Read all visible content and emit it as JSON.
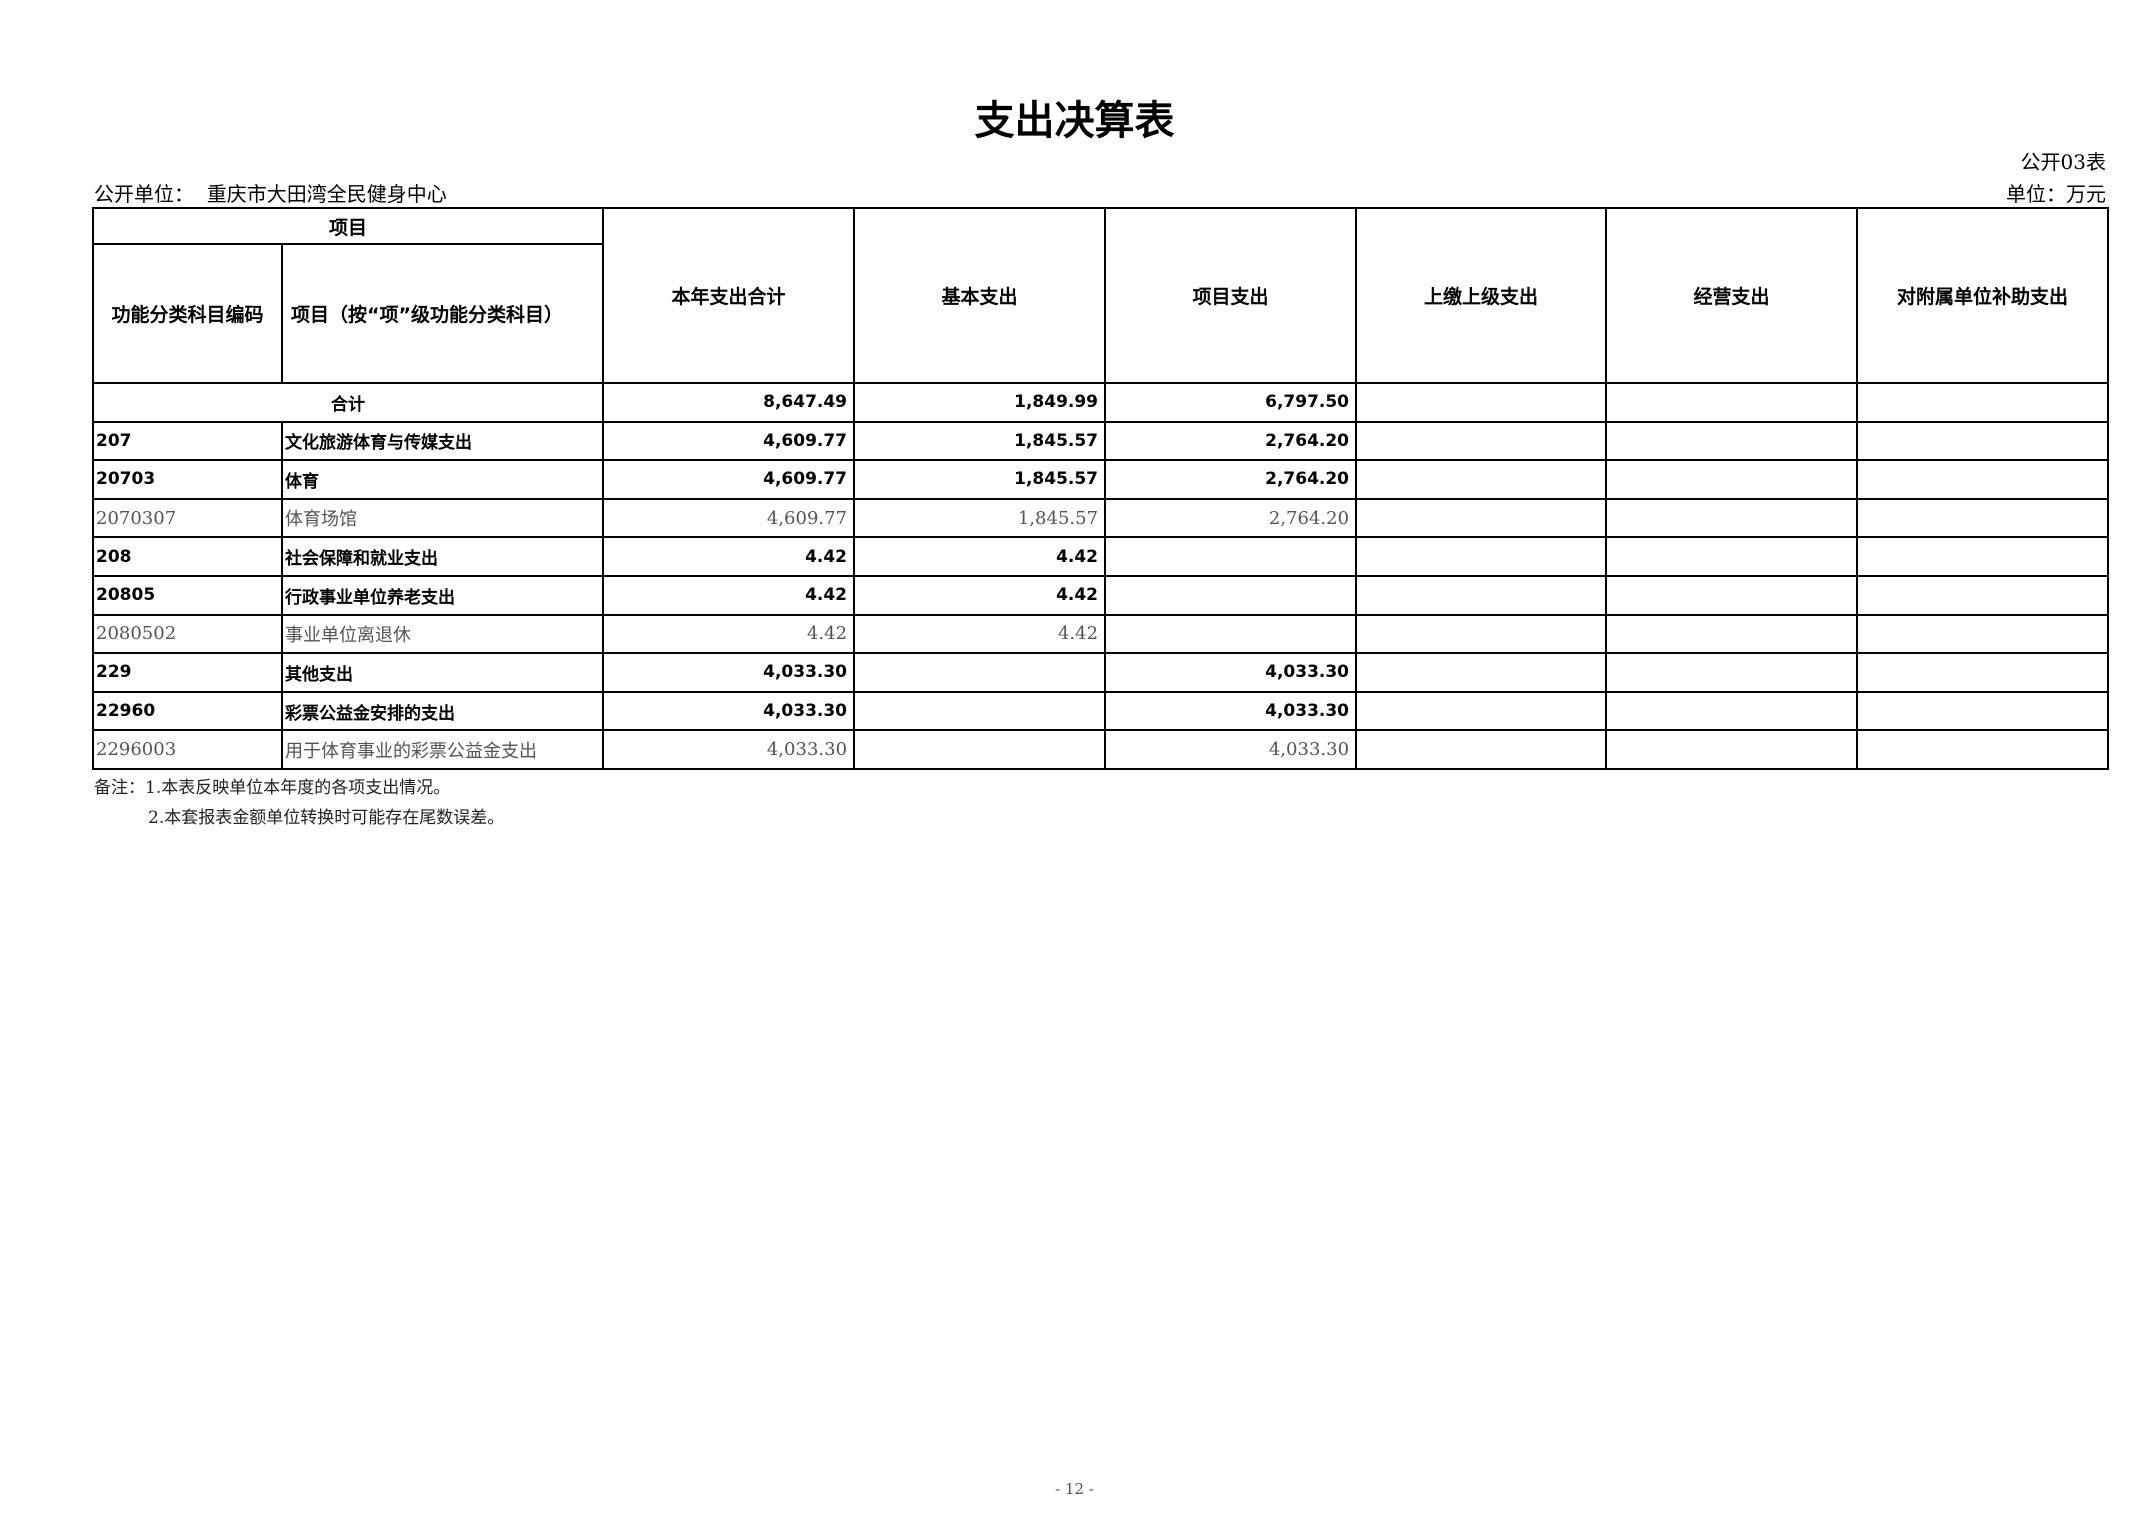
{
  "title": "支出决算表",
  "form_no": "公开03表",
  "unit_label": "公开单位：",
  "unit_name": "重庆市大田湾全民健身中心",
  "currency_unit": "单位：万元",
  "header": {
    "item_group": "项目",
    "code": "功能分类科目编码",
    "name": "项目（按“项”级功能分类科目）",
    "cols": [
      "本年支出合计",
      "基本支出",
      "项目支出",
      "上缴上级支出",
      "经营支出",
      "对附属单位补助支出"
    ]
  },
  "total_row": {
    "label": "合计",
    "values": [
      "8,647.49",
      "1,849.99",
      "6,797.50",
      "",
      "",
      ""
    ]
  },
  "rows": [
    {
      "code": "207",
      "name": "文化旅游体育与传媒支出",
      "level": "bold",
      "values": [
        "4,609.77",
        "1,845.57",
        "2,764.20",
        "",
        "",
        ""
      ]
    },
    {
      "code": "20703",
      "name": "体育",
      "level": "bold",
      "values": [
        "4,609.77",
        "1,845.57",
        "2,764.20",
        "",
        "",
        ""
      ]
    },
    {
      "code": "2070307",
      "name": "体育场馆",
      "level": "light",
      "values": [
        "4,609.77",
        "1,845.57",
        "2,764.20",
        "",
        "",
        ""
      ]
    },
    {
      "code": "208",
      "name": "社会保障和就业支出",
      "level": "bold",
      "values": [
        "4.42",
        "4.42",
        "",
        "",
        "",
        ""
      ]
    },
    {
      "code": "20805",
      "name": "行政事业单位养老支出",
      "level": "bold",
      "values": [
        "4.42",
        "4.42",
        "",
        "",
        "",
        ""
      ]
    },
    {
      "code": "2080502",
      "name": "事业单位离退休",
      "level": "light",
      "values": [
        "4.42",
        "4.42",
        "",
        "",
        "",
        ""
      ]
    },
    {
      "code": "229",
      "name": "其他支出",
      "level": "bold",
      "values": [
        "4,033.30",
        "",
        "4,033.30",
        "",
        "",
        ""
      ]
    },
    {
      "code": "22960",
      "name": "彩票公益金安排的支出",
      "level": "bold",
      "values": [
        "4,033.30",
        "",
        "4,033.30",
        "",
        "",
        ""
      ]
    },
    {
      "code": "2296003",
      "name": "用于体育事业的彩票公益金支出",
      "level": "light",
      "values": [
        "4,033.30",
        "",
        "4,033.30",
        "",
        "",
        ""
      ]
    }
  ],
  "notes": [
    "备注：1.本表反映单位本年度的各项支出情况。",
    "2.本套报表金额单位转换时可能存在尾数误差。"
  ],
  "page_number": "- 12 -"
}
